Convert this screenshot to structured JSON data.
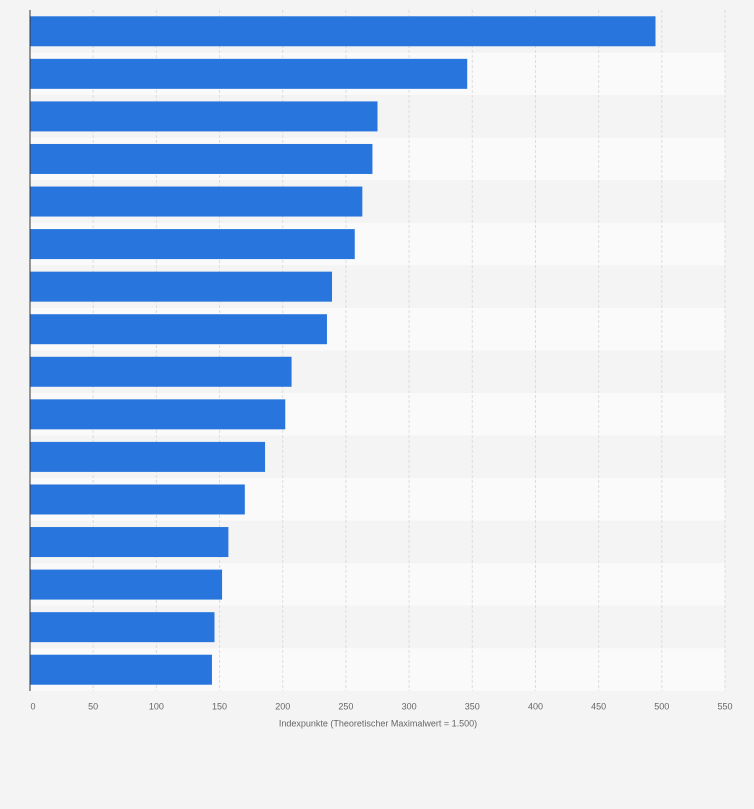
{
  "chart_data": {
    "type": "barh",
    "x_label": "Indexpunkte (Theoretischer Maximalwert = 1.500)",
    "categories": [
      null,
      null,
      null,
      null,
      null,
      null,
      null,
      null,
      null,
      null,
      null,
      null,
      null,
      null,
      null,
      null
    ],
    "values": [
      495,
      346,
      275,
      271,
      263,
      257,
      239,
      235,
      207,
      202,
      186,
      170,
      157,
      152,
      146,
      144
    ],
    "color": "#2876dd",
    "xlim": [
      0,
      550
    ],
    "xticks": [
      0,
      50,
      100,
      150,
      200,
      250,
      300,
      350,
      400,
      450,
      500,
      550
    ],
    "grid": true
  }
}
